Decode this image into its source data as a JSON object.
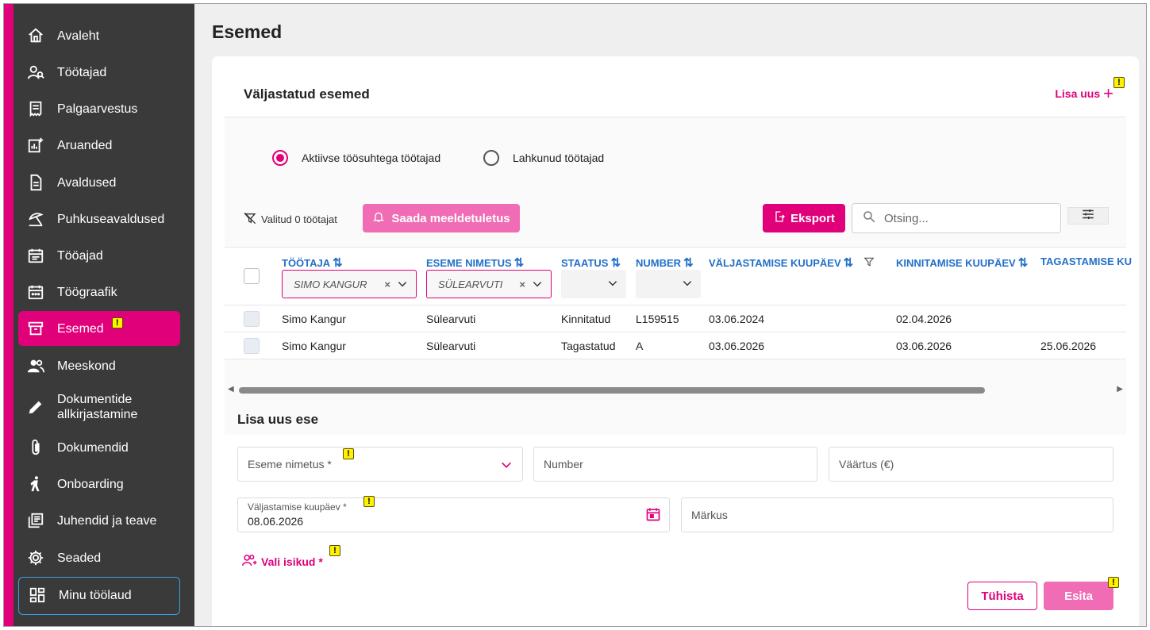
{
  "sidebar": {
    "items": [
      {
        "label": "Avaleht",
        "icon": "home-icon"
      },
      {
        "label": "Töötajad",
        "icon": "person-search-icon"
      },
      {
        "label": "Palgaarvestus",
        "icon": "receipt-icon"
      },
      {
        "label": "Aruanded",
        "icon": "chart-add-icon"
      },
      {
        "label": "Avaldused",
        "icon": "document-icon"
      },
      {
        "label": "Puhkuseavaldused",
        "icon": "beach-icon"
      },
      {
        "label": "Tööajad",
        "icon": "calendar-list-icon"
      },
      {
        "label": "Töögraafik",
        "icon": "calendar-grid-icon"
      },
      {
        "label": "Esemed",
        "icon": "archive-box-icon",
        "active": true
      },
      {
        "label": "Meeskond",
        "icon": "team-icon"
      },
      {
        "label": "Dokumentide allkirjastamine",
        "icon": "pen-icon"
      },
      {
        "label": "Dokumendid",
        "icon": "paperclip-icon"
      },
      {
        "label": "Onboarding",
        "icon": "person-walk-icon"
      },
      {
        "label": "Juhendid ja teave",
        "icon": "library-icon"
      },
      {
        "label": "Seaded",
        "icon": "gear-icon"
      }
    ],
    "dashboard_label": "Minu töölaud",
    "accent": "#e0007a",
    "bg": "#3a3a3a"
  },
  "page": {
    "title": "Esemed"
  },
  "card": {
    "title": "Väljastatud esemed",
    "add_new_label": "Lisa uus"
  },
  "filters": {
    "radio_active": "Aktiivse töösuhtega töötajad",
    "radio_left": "Lahkunud töötajad",
    "selected_info": "Valitud 0 töötajat",
    "remind_label": "Saada meeldetuletus",
    "export_label": "Eksport",
    "search_placeholder": "Otsing..."
  },
  "table": {
    "columns": [
      "TÖÖTAJA",
      "ESEME NIMETUS",
      "STAATUS",
      "NUMBER",
      "VÄLJASTAMISE KUUPÄEV",
      "KINNITAMISE KUUPÄEV",
      "TAGASTAMISE KU"
    ],
    "filter_worker": "SIMO KANGUR",
    "filter_item": "SÜLEARVUTI",
    "rows": [
      {
        "worker": "Simo Kangur",
        "item": "Sülearvuti",
        "status": "Kinnitatud",
        "number": "L159515",
        "issued": "03.06.2024",
        "confirmed": "02.04.2026",
        "returned": ""
      },
      {
        "worker": "Simo Kangur",
        "item": "Sülearvuti",
        "status": "Tagastatud",
        "number": "A",
        "issued": "03.06.2026",
        "confirmed": "03.06.2026",
        "returned": "25.06.2026"
      }
    ]
  },
  "form": {
    "title": "Lisa uus ese",
    "item_name_label": "Eseme nimetus *",
    "number_label": "Number",
    "value_label": "Väärtus (€)",
    "issue_date_label": "Väljastamise kuupäev *",
    "issue_date_value": "08.06.2026",
    "note_label": "Märkus",
    "select_persons_label": "Vali isikud *",
    "cancel_label": "Tühista",
    "submit_label": "Esita"
  },
  "warning_badge": "!"
}
